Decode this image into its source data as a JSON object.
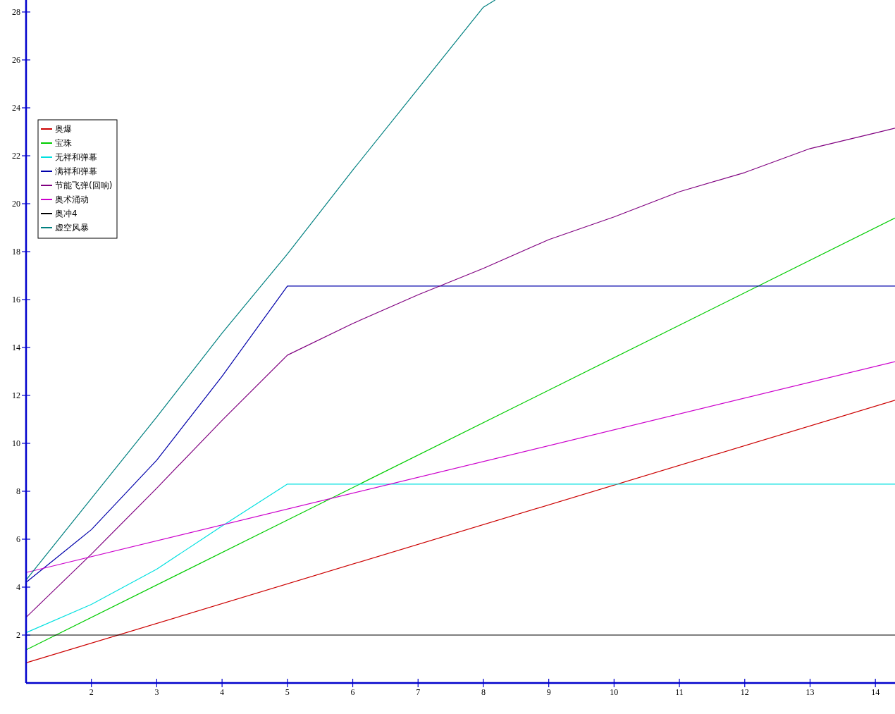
{
  "chart_data": {
    "type": "line",
    "xlim": [
      1,
      14.3
    ],
    "ylim": [
      0,
      28.5
    ],
    "xticks": [
      2,
      3,
      4,
      5,
      6,
      7,
      8,
      9,
      10,
      11,
      12,
      13,
      14
    ],
    "yticks": [
      2,
      4,
      6,
      8,
      10,
      12,
      14,
      16,
      18,
      20,
      22,
      24,
      26,
      28
    ],
    "grid": false,
    "legend": "left",
    "marker": "none",
    "line_style": "solid",
    "series": [
      {
        "name": "奥爆",
        "color": "#cc0000",
        "x": [
          1,
          14.3
        ],
        "values": [
          0.84,
          11.8
        ]
      },
      {
        "name": "宝珠",
        "color": "#00cc00",
        "x": [
          1,
          14.3
        ],
        "values": [
          1.38,
          19.4
        ]
      },
      {
        "name": "无祥和弹幕",
        "color": "#00e0e0",
        "x": [
          1,
          2,
          3,
          4,
          5,
          14.3
        ],
        "values": [
          2.1,
          3.28,
          4.75,
          6.55,
          8.3,
          8.3
        ]
      },
      {
        "name": "满祥和弹幕",
        "color": "#0000aa",
        "x": [
          1,
          2,
          3,
          4,
          5,
          14.3
        ],
        "values": [
          4.2,
          6.4,
          9.3,
          12.8,
          16.56,
          16.56
        ]
      },
      {
        "name": "节能飞弹(回响)",
        "color": "#800080",
        "x": [
          1,
          2,
          3,
          4,
          5,
          6,
          7,
          8,
          9,
          10,
          11,
          12,
          13,
          14,
          14.3
        ],
        "values": [
          2.74,
          5.38,
          8.13,
          10.96,
          13.68,
          15.0,
          16.2,
          17.3,
          18.5,
          19.45,
          20.5,
          21.3,
          22.3,
          22.95,
          23.15
        ]
      },
      {
        "name": "奥术涌动",
        "color": "#cc00cc",
        "x": [
          1,
          14.3
        ],
        "values": [
          4.61,
          13.41
        ]
      },
      {
        "name": "奥冲4",
        "color": "#000000",
        "x": [
          1,
          14.3
        ],
        "values": [
          2,
          2
        ]
      },
      {
        "name": "虚空风暴",
        "color": "#008080",
        "x": [
          1,
          2,
          3,
          4,
          5,
          6,
          7,
          8,
          8.18
        ],
        "values": [
          4.3,
          7.7,
          11.1,
          14.6,
          17.9,
          21.4,
          24.8,
          28.2,
          28.5
        ]
      }
    ]
  }
}
